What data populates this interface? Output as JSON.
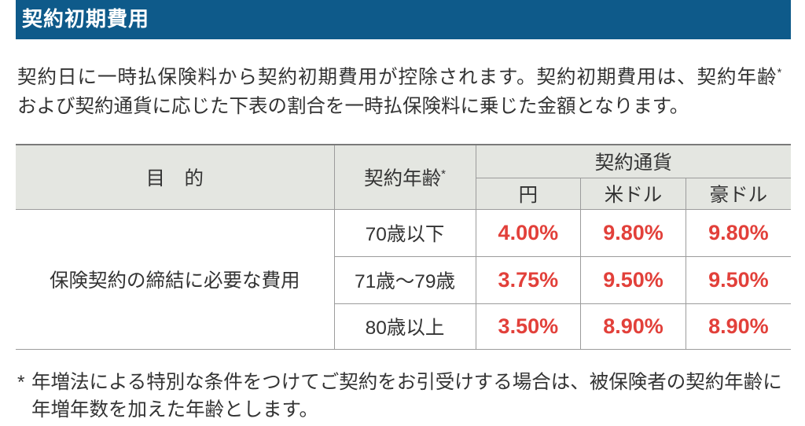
{
  "section": {
    "title": "契約初期費用"
  },
  "intro": {
    "line1": "契約日に一時払保険料から契約初期費用が控除されます。契約初期費用は、契約年齢",
    "note_mark": "*",
    "line2": "および契約通貨に応じた下表の割合を一時払保険料に乗じた金額となります。"
  },
  "table": {
    "headers": {
      "purpose": "目　的",
      "age": "契約年齢",
      "age_mark": "*",
      "currency": "契約通貨",
      "currencies": [
        "円",
        "米ドル",
        "豪ドル"
      ]
    },
    "purpose": "保険契約の締結に必要な費用",
    "rows": [
      {
        "age": "70歳以下",
        "values": [
          "4.00%",
          "9.80%",
          "9.80%"
        ]
      },
      {
        "age": "71歳～79歳",
        "values": [
          "3.75%",
          "9.50%",
          "9.50%"
        ]
      },
      {
        "age": "80歳以上",
        "values": [
          "3.50%",
          "8.90%",
          "8.90%"
        ]
      }
    ]
  },
  "footnote": {
    "mark": "*",
    "line1": "年増法による特別な条件をつけてご契約をお引受けする場合は、被保険者の契約年齢に",
    "line2": "年増年数を加えた年齢とします。"
  },
  "colors": {
    "title_bar": "#0e5a8a",
    "header_fill": "#e4e6e1",
    "rate_red": "#e2403a",
    "text": "#333333"
  }
}
